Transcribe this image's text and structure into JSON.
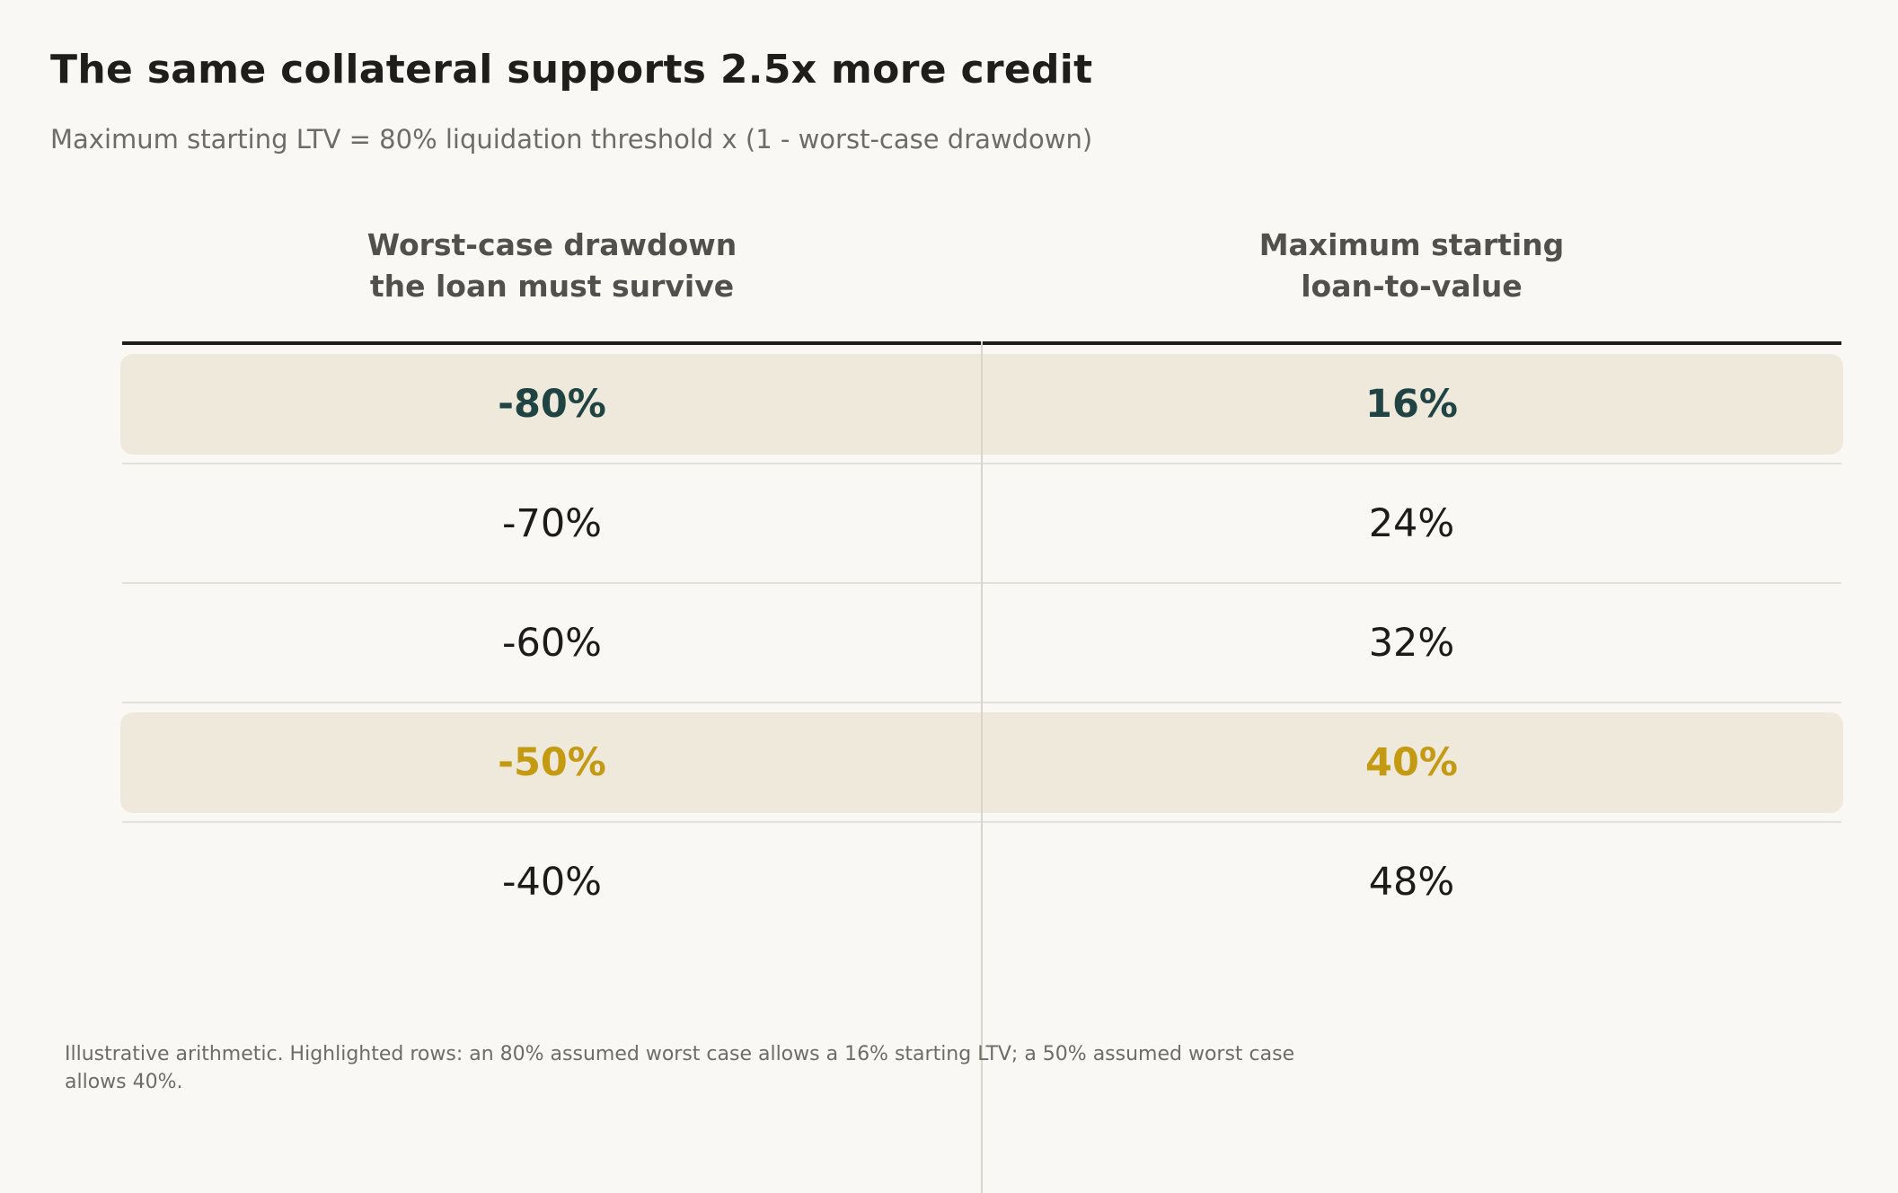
{
  "title": "The same collateral supports 2.5x more credit",
  "subtitle": "Maximum starting LTV = 80% liquidation threshold x (1 - worst-case drawdown)",
  "chart_data": {
    "type": "table",
    "columns": [
      {
        "line1": "Worst-case drawdown",
        "line2": "the loan must survive"
      },
      {
        "line1": "Maximum starting",
        "line2": "loan-to-value"
      }
    ],
    "rows": [
      {
        "drawdown": "-80%",
        "ltv": "16%",
        "highlight": "dark"
      },
      {
        "drawdown": "-70%",
        "ltv": "24%",
        "highlight": ""
      },
      {
        "drawdown": "-60%",
        "ltv": "32%",
        "highlight": ""
      },
      {
        "drawdown": "-50%",
        "ltv": "40%",
        "highlight": "gold"
      },
      {
        "drawdown": "-40%",
        "ltv": "48%",
        "highlight": ""
      }
    ],
    "colors": {
      "highlight_bg": "#efe9dc",
      "dark_text": "#1f4443",
      "gold_text": "#c49a12"
    }
  },
  "note": "Illustrative arithmetic. Highlighted rows: an 80% assumed worst case allows a 16% starting LTV; a 50% assumed worst case allows 40%."
}
